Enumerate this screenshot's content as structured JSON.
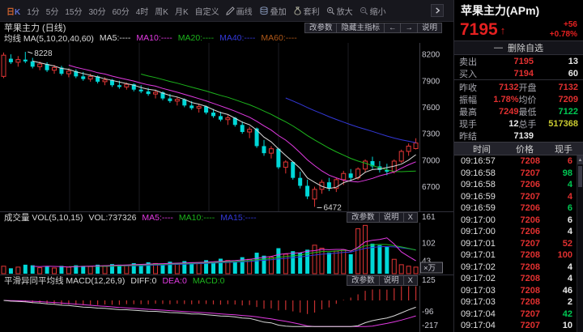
{
  "toolbar": {
    "items": [
      {
        "id": "day-k",
        "label": "日K",
        "active": true,
        "active_colors": [
          "#c8602e",
          "#5e6fd0"
        ]
      },
      {
        "id": "min-1",
        "label": "1分"
      },
      {
        "id": "min-5",
        "label": "5分"
      },
      {
        "id": "min-15",
        "label": "15分"
      },
      {
        "id": "min-30",
        "label": "30分"
      },
      {
        "id": "min-60",
        "label": "60分"
      },
      {
        "id": "hour-4",
        "label": "4时"
      },
      {
        "id": "week-k",
        "label": "周K"
      },
      {
        "id": "month-k",
        "label": "月K"
      },
      {
        "id": "custom",
        "label": "自定义"
      },
      {
        "id": "draw-line",
        "label": "画线",
        "icon": "pencil"
      },
      {
        "id": "overlay",
        "label": "叠加",
        "icon": "layers"
      },
      {
        "id": "arbitrage",
        "label": "套利",
        "icon": "money-bag"
      },
      {
        "id": "zoom-in",
        "label": "放大",
        "icon": "zoom-in"
      },
      {
        "id": "zoom-out",
        "label": "缩小",
        "icon": "zoom-out"
      }
    ]
  },
  "main_pane": {
    "title": "苹果主力 (日线)",
    "buttons": [
      "改参数",
      "隐藏主指标",
      "←",
      "→",
      "说明"
    ],
    "legend_prefix": "均线 MA(5,10,20,40,60)",
    "legend": [
      {
        "label": "MA5:----",
        "color": "#d8d8d8"
      },
      {
        "label": "MA10:----",
        "color": "#e23ae2"
      },
      {
        "label": "MA20:----",
        "color": "#1cb41c"
      },
      {
        "label": "MA40:----",
        "color": "#3338d8"
      },
      {
        "label": "MA60:----",
        "color": "#b05818"
      }
    ]
  },
  "volume_pane": {
    "legend_prefix": "成交量 VOL(5,10,15)",
    "vol_label": "VOL:737326",
    "legend": [
      {
        "label": "MA5:----",
        "color": "#e23ae2"
      },
      {
        "label": "MA10:----",
        "color": "#1cb41c"
      },
      {
        "label": "MA15:----",
        "color": "#3338d8"
      }
    ],
    "buttons": [
      "改参数",
      "说明",
      "X"
    ],
    "unit_badge": "×万"
  },
  "macd_pane": {
    "legend_prefix": "平滑异同平均线 MACD(12,26,9)",
    "legend": [
      {
        "label": "DIFF:0",
        "color": "#d8d8d8"
      },
      {
        "label": "DEA:0",
        "color": "#e23ae2"
      },
      {
        "label": "MACD:0",
        "color": "#1cb41c"
      }
    ],
    "buttons": [
      "改参数",
      "说明",
      "X"
    ]
  },
  "chart_data": {
    "type": "candlestick",
    "symbol": "苹果主力",
    "period": "日线",
    "price_axis": [
      8200,
      7900,
      7600,
      7300,
      7000,
      6700
    ],
    "price_range": [
      6430,
      8320
    ],
    "high_annotation": "8228",
    "low_annotation": "6472",
    "candles": [
      [
        7950,
        8220,
        7930,
        8190
      ],
      [
        8150,
        8200,
        8090,
        8110
      ],
      [
        8110,
        8180,
        8060,
        8140
      ],
      [
        8140,
        8228,
        8100,
        8120
      ],
      [
        8120,
        8160,
        8040,
        8060
      ],
      [
        8060,
        8120,
        8020,
        8090
      ],
      [
        8090,
        8110,
        8000,
        8020
      ],
      [
        8020,
        8080,
        7980,
        8050
      ],
      [
        8050,
        8070,
        7960,
        7980
      ],
      [
        7980,
        8040,
        7940,
        8010
      ],
      [
        8010,
        8030,
        7930,
        7950
      ],
      [
        7950,
        8000,
        7900,
        7920
      ],
      [
        7920,
        7980,
        7890,
        7950
      ],
      [
        7950,
        7960,
        7870,
        7890
      ],
      [
        7890,
        7940,
        7850,
        7910
      ],
      [
        7910,
        7920,
        7830,
        7850
      ],
      [
        7850,
        7900,
        7810,
        7830
      ],
      [
        7830,
        7880,
        7800,
        7860
      ],
      [
        7860,
        7870,
        7780,
        7800
      ],
      [
        7800,
        7850,
        7760,
        7780
      ],
      [
        7780,
        7820,
        7730,
        7750
      ],
      [
        7750,
        7800,
        7700,
        7770
      ],
      [
        7770,
        7780,
        7680,
        7700
      ],
      [
        7700,
        7750,
        7650,
        7670
      ],
      [
        7670,
        7720,
        7620,
        7690
      ],
      [
        7690,
        7700,
        7600,
        7620
      ],
      [
        7620,
        7670,
        7570,
        7590
      ],
      [
        7590,
        7640,
        7540,
        7610
      ],
      [
        7610,
        7620,
        7520,
        7540
      ],
      [
        7540,
        7580,
        7480,
        7500
      ],
      [
        7500,
        7550,
        7440,
        7460
      ],
      [
        7460,
        7510,
        7400,
        7480
      ],
      [
        7480,
        7490,
        7380,
        7400
      ],
      [
        7400,
        7440,
        7300,
        7320
      ],
      [
        7320,
        7380,
        7250,
        7350
      ],
      [
        7360,
        7370,
        7140,
        7160
      ],
      [
        7160,
        7230,
        7050,
        7080
      ],
      [
        7080,
        7160,
        7020,
        7130
      ],
      [
        7130,
        7140,
        6900,
        6920
      ],
      [
        6920,
        7000,
        6850,
        6980
      ],
      [
        6980,
        6990,
        6780,
        6800
      ],
      [
        6800,
        6870,
        6680,
        6710
      ],
      [
        6710,
        6780,
        6560,
        6590
      ],
      [
        6560,
        6700,
        6472,
        6670
      ],
      [
        6670,
        6780,
        6620,
        6750
      ],
      [
        6750,
        6800,
        6650,
        6680
      ],
      [
        6680,
        6800,
        6640,
        6780
      ],
      [
        6780,
        6880,
        6720,
        6850
      ],
      [
        6850,
        6900,
        6760,
        6800
      ],
      [
        6800,
        6920,
        6780,
        6900
      ],
      [
        6900,
        7010,
        6860,
        6990
      ],
      [
        6990,
        7040,
        6900,
        6930
      ],
      [
        6930,
        6990,
        6860,
        6890
      ],
      [
        6890,
        6960,
        6830,
        6870
      ],
      [
        6870,
        7010,
        6850,
        6990
      ],
      [
        6990,
        7120,
        6970,
        7100
      ],
      [
        7100,
        7190,
        7050,
        7160
      ],
      [
        7132,
        7249,
        7122,
        7195
      ]
    ],
    "volumes": [
      25,
      18,
      22,
      30,
      28,
      20,
      24,
      19,
      26,
      22,
      28,
      26,
      24,
      30,
      26,
      32,
      30,
      28,
      35,
      30,
      38,
      34,
      30,
      40,
      34,
      42,
      38,
      34,
      45,
      40,
      50,
      44,
      40,
      55,
      48,
      70,
      60,
      55,
      85,
      65,
      75,
      70,
      80,
      95,
      85,
      70,
      75,
      80,
      65,
      150,
      161,
      100,
      95,
      90,
      48,
      30,
      25,
      22
    ],
    "volume_axis": [
      161,
      102,
      43
    ],
    "volume_unit": "万",
    "macd_axis": [
      125,
      -96,
      -217
    ],
    "ma_periods_price": [
      5,
      10,
      20,
      40,
      60
    ],
    "ma_periods_volume": [
      5,
      10,
      15
    ],
    "macd_params": [
      12,
      26,
      9
    ]
  },
  "quote_panel": {
    "symbol": "苹果主力(APm)",
    "last_price": "7195",
    "arrow": "↑",
    "change": "+56",
    "change_pct": "+0.78%",
    "watchlist_button": {
      "icon": "—",
      "label": "删除自选"
    },
    "sell": {
      "label": "卖出",
      "price": "7195",
      "qty": "13"
    },
    "buy": {
      "label": "买入",
      "price": "7194",
      "qty": "60"
    },
    "stats": [
      [
        {
          "label": "昨收",
          "value": "7132",
          "color": "red"
        },
        {
          "label": "开盘",
          "value": "7132",
          "color": "red"
        }
      ],
      [
        {
          "label": "振幅",
          "value": "1.78%",
          "color": "red"
        },
        {
          "label": "均价",
          "value": "7209",
          "color": "red"
        }
      ],
      [
        {
          "label": "最高",
          "value": "7249",
          "color": "red"
        },
        {
          "label": "最低",
          "value": "7122",
          "color": "green"
        }
      ],
      [
        {
          "label": "现手",
          "value": "12",
          "color": "white"
        },
        {
          "label": "总手",
          "value": "517368",
          "color": "yellow"
        }
      ]
    ],
    "prev_settle": {
      "label": "昨结",
      "value": "7139",
      "color": "white"
    },
    "table_headers": [
      "时间",
      "价格",
      "现手"
    ],
    "ticks": [
      {
        "time": "09:16:57",
        "price": "7208",
        "vol": "6",
        "vol_color": "red"
      },
      {
        "time": "09:16:58",
        "price": "7207",
        "vol": "98",
        "vol_color": "green"
      },
      {
        "time": "09:16:58",
        "price": "7206",
        "vol": "4",
        "vol_color": "green"
      },
      {
        "time": "09:16:59",
        "price": "7207",
        "vol": "4",
        "vol_color": "red"
      },
      {
        "time": "09:16:59",
        "price": "7206",
        "vol": "6",
        "vol_color": "green"
      },
      {
        "time": "09:17:00",
        "price": "7206",
        "vol": "6",
        "vol_color": "white"
      },
      {
        "time": "09:17:00",
        "price": "7206",
        "vol": "4",
        "vol_color": "white"
      },
      {
        "time": "09:17:01",
        "price": "7207",
        "vol": "52",
        "vol_color": "red"
      },
      {
        "time": "09:17:01",
        "price": "7208",
        "vol": "100",
        "vol_color": "red"
      },
      {
        "time": "09:17:02",
        "price": "7208",
        "vol": "4",
        "vol_color": "white"
      },
      {
        "time": "09:17:02",
        "price": "7208",
        "vol": "4",
        "vol_color": "white"
      },
      {
        "time": "09:17:03",
        "price": "7208",
        "vol": "46",
        "vol_color": "white"
      },
      {
        "time": "09:17:03",
        "price": "7208",
        "vol": "2",
        "vol_color": "white"
      },
      {
        "time": "09:17:04",
        "price": "7207",
        "vol": "42",
        "vol_color": "green"
      },
      {
        "time": "09:17:04",
        "price": "7207",
        "vol": "10",
        "vol_color": "white"
      }
    ]
  },
  "colors": {
    "up": "#e23535",
    "down": "#00d8d8",
    "hist": "#c83030",
    "diff": "#d8d8d8",
    "dea": "#e23ae2",
    "ma5": "#d8d8d8",
    "ma10": "#e23ae2",
    "ma20": "#1cb41c",
    "ma40": "#3338d8",
    "ma60": "#b05818",
    "vol_ma5": "#e23ae2",
    "vol_ma10": "#1cb41c",
    "vol_ma15": "#3338d8",
    "value_red": "#e23030",
    "value_green": "#00c853",
    "value_white": "#e8e8e8",
    "value_yellow": "#caca30",
    "axis_text": "#c8c8d0"
  }
}
